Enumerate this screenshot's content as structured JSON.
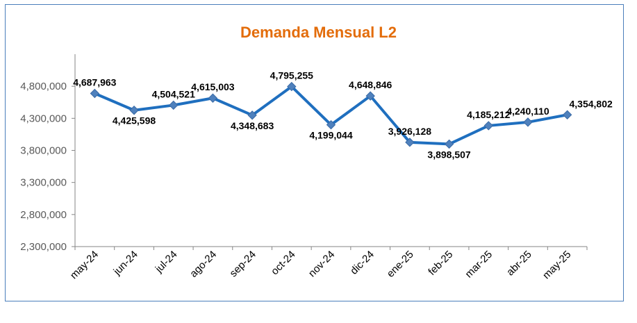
{
  "colors": {
    "title": "#e36c0a",
    "line": "#1f6fbf",
    "marker": "#4f81bd",
    "axis_text": "#595959",
    "frame": "#4a7ebb"
  },
  "chart_data": {
    "type": "line",
    "title": "Demanda Mensual L2",
    "xlabel": "",
    "ylabel": "",
    "categories": [
      "may-24",
      "jun-24",
      "jul-24",
      "ago-24",
      "sep-24",
      "oct-24",
      "nov-24",
      "dic-24",
      "ene-25",
      "feb-25",
      "mar-25",
      "abr-25",
      "may-25"
    ],
    "series": [
      {
        "values": [
          4687963,
          4425598,
          4504521,
          4615003,
          4348683,
          4795255,
          4199044,
          4648846,
          3926128,
          3898507,
          4185212,
          4240110,
          4354802
        ],
        "labels": [
          "4,687,963",
          "4,425,598",
          "4,504,521",
          "4,615,003",
          "4,348,683",
          "4,795,255",
          "4,199,044",
          "4,648,846",
          "3,926,128",
          "3,898,507",
          "4,185,212",
          "4,240,110",
          "4,354,802"
        ]
      }
    ],
    "ylim": [
      2300000,
      5300000
    ],
    "yticks": [
      2300000,
      2800000,
      3300000,
      3800000,
      4300000,
      4800000
    ],
    "ytick_labels": [
      "2,300,000",
      "2,800,000",
      "3,300,000",
      "3,800,000",
      "4,300,000",
      "4,800,000"
    ],
    "grid": false,
    "legend": "none"
  }
}
